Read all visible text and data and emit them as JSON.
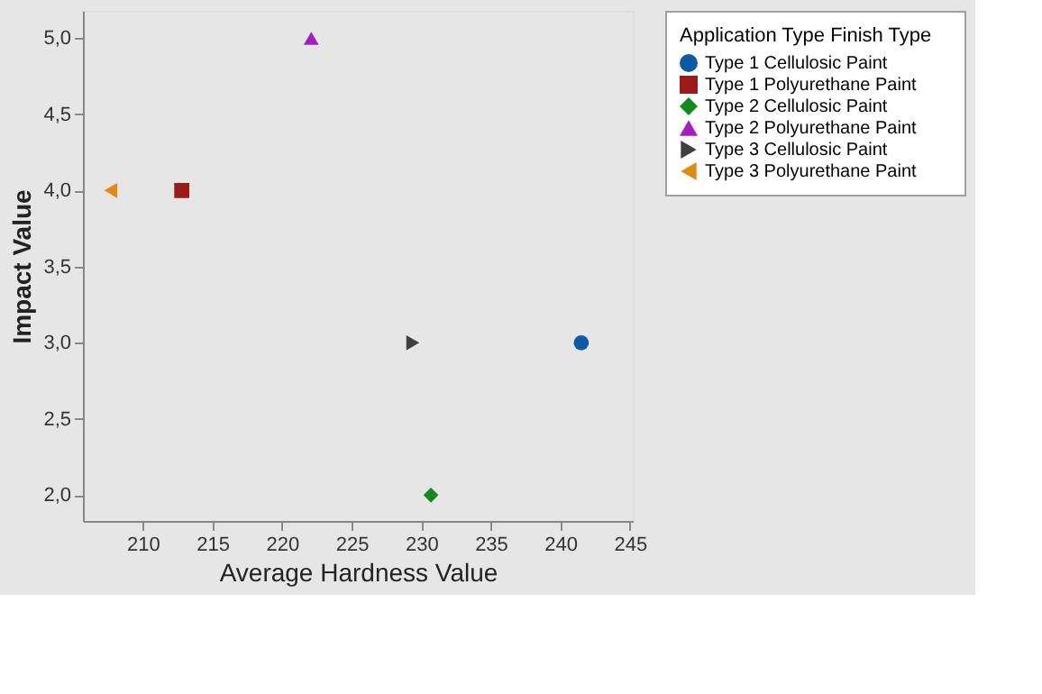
{
  "chart_data": {
    "type": "scatter",
    "xlabel": "Average Hardness Value",
    "ylabel": "Impact Value",
    "legend_title": "Application Type    Finish Type",
    "legend": "right",
    "grid": false,
    "xlim": [
      205.7,
      245.2
    ],
    "xticks": [
      210,
      215,
      220,
      225,
      230,
      235,
      240,
      245
    ],
    "ylim": [
      1.83,
      5.18
    ],
    "yticks": [
      {
        "value": 2,
        "label": "2,0"
      },
      {
        "value": 2.5,
        "label": "2,5"
      },
      {
        "value": 3,
        "label": "3,0"
      },
      {
        "value": 3.5,
        "label": "3,5"
      },
      {
        "value": 4,
        "label": "4,0"
      },
      {
        "value": 4.5,
        "label": "4,5"
      },
      {
        "value": 5,
        "label": "5,0"
      }
    ],
    "series": [
      {
        "name": "Type 1    Cellulosic Paint",
        "color": "#0a5aa8",
        "marker": "circle",
        "x": [
          241.5
        ],
        "values": [
          3.0
        ]
      },
      {
        "name": "Type 1    Polyurethane Paint",
        "color": "#9b1a1a",
        "marker": "square",
        "x": [
          212.8
        ],
        "values": [
          4.0
        ]
      },
      {
        "name": "Type 2    Cellulosic Paint",
        "color": "#138a1e",
        "marker": "diamond",
        "x": [
          230.7
        ],
        "values": [
          2.0
        ]
      },
      {
        "name": "Type 2    Polyurethane Paint",
        "color": "#a51fc0",
        "marker": "triangle",
        "x": [
          222.1
        ],
        "values": [
          5.0
        ]
      },
      {
        "name": "Type 3    Cellulosic Paint",
        "color": "#3f3f3f",
        "marker": "triangle-right",
        "x": [
          229.4
        ],
        "values": [
          3.0
        ]
      },
      {
        "name": "Type 3    Polyurethane Paint",
        "color": "#e08a10",
        "marker": "triangle-left",
        "x": [
          207.7
        ],
        "values": [
          4.0
        ]
      }
    ]
  }
}
